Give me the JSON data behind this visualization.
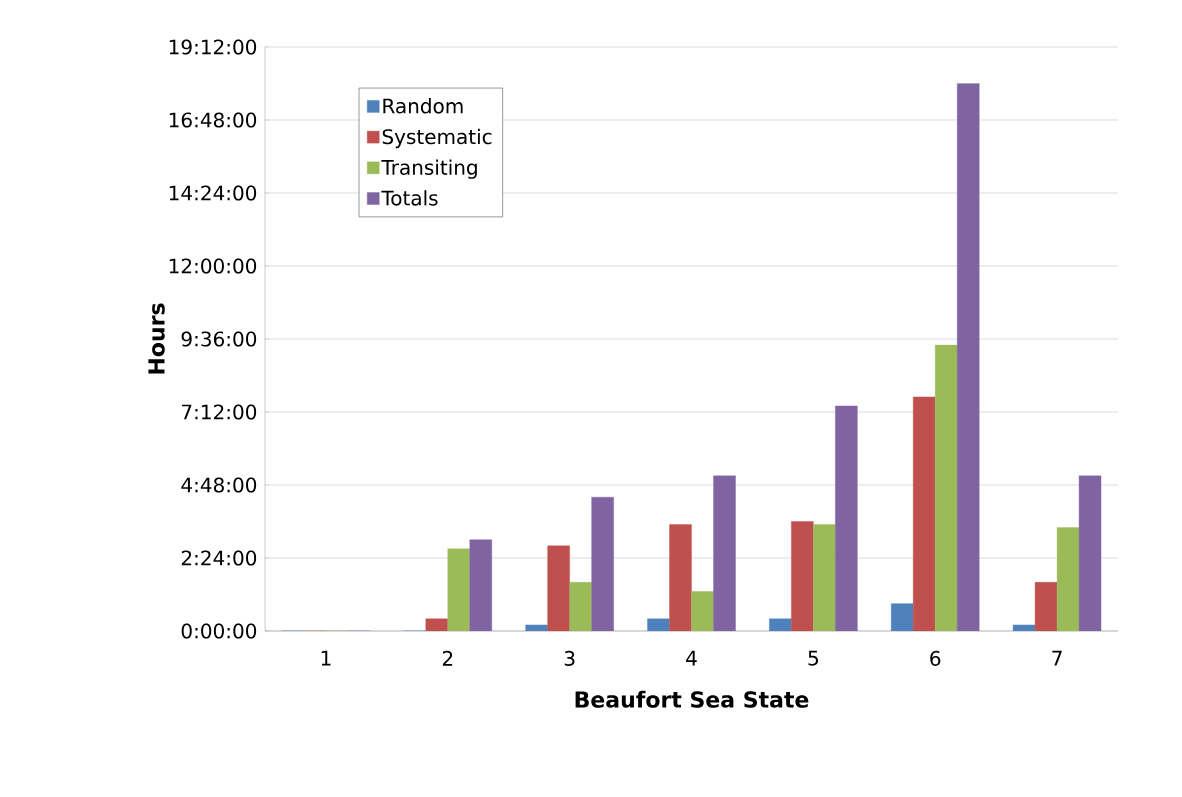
{
  "chart_data": {
    "type": "bar",
    "xlabel": "Beaufort Sea State",
    "ylabel": "Hours",
    "categories": [
      "1",
      "2",
      "3",
      "4",
      "5",
      "6",
      "7"
    ],
    "series": [
      {
        "name": "Random",
        "color": "#4f81bd",
        "values": [
          0,
          0,
          0.2,
          0.4,
          0.4,
          0.9,
          0.2
        ]
      },
      {
        "name": "Systematic",
        "color": "#c0504d",
        "values": [
          0,
          0.4,
          2.8,
          3.5,
          3.6,
          7.7,
          1.6
        ]
      },
      {
        "name": "Transiting",
        "color": "#9bbb59",
        "values": [
          0,
          2.7,
          1.6,
          1.3,
          3.5,
          9.4,
          3.4
        ]
      },
      {
        "name": "Totals",
        "color": "#8064a2",
        "values": [
          0,
          3.0,
          4.4,
          5.1,
          7.4,
          18.0,
          5.1
        ]
      }
    ],
    "ylim": [
      0,
      19.2
    ],
    "yticks": [
      {
        "value": 0,
        "label": "0:00:00"
      },
      {
        "value": 2.4,
        "label": "2:24:00"
      },
      {
        "value": 4.8,
        "label": "4:48:00"
      },
      {
        "value": 7.2,
        "label": "7:12:00"
      },
      {
        "value": 9.6,
        "label": "9:36:00"
      },
      {
        "value": 12,
        "label": "12:00:00"
      },
      {
        "value": 14.4,
        "label": "14:24:00"
      },
      {
        "value": 16.8,
        "label": "16:48:00"
      },
      {
        "value": 19.2,
        "label": "19:12:00"
      }
    ],
    "grid": "y",
    "legend": "top left"
  }
}
